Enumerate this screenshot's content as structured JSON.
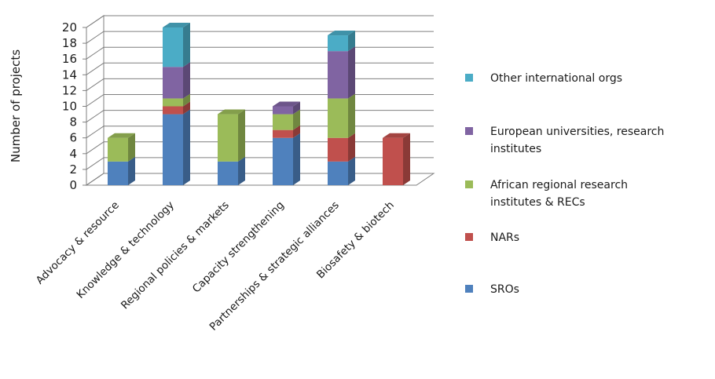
{
  "chart_data": {
    "type": "bar",
    "stacked": true,
    "three_d": true,
    "title": "",
    "xlabel": "",
    "ylabel": "Number of projects",
    "ylim": [
      0,
      20
    ],
    "y_ticks": [
      0,
      2,
      4,
      6,
      8,
      10,
      12,
      14,
      16,
      18,
      20
    ],
    "grid": true,
    "legend_position": "right",
    "categories": [
      "Advocacy & resource",
      "Knowledge & technology",
      "Regional policies & markets",
      "Capacity strengthening",
      "Partnerships & strategic alliances",
      "Biosafety & biotech"
    ],
    "series": [
      {
        "name": "SROs",
        "color": "#4f81bd",
        "values": [
          3,
          9,
          3,
          6,
          3,
          0
        ]
      },
      {
        "name": "NARs",
        "color": "#c0504d",
        "values": [
          0,
          1,
          0,
          1,
          3,
          6
        ]
      },
      {
        "name": "African regional research institutes & RECs",
        "color": "#9bbb59",
        "values": [
          3,
          1,
          6,
          2,
          5,
          0
        ]
      },
      {
        "name": "European universities, research institutes",
        "color": "#8064a2",
        "values": [
          0,
          4,
          0,
          1,
          6,
          0
        ]
      },
      {
        "name": "Other international orgs",
        "color": "#4bacc6",
        "values": [
          0,
          5,
          0,
          0,
          2,
          0
        ]
      }
    ],
    "legend": [
      {
        "lines": [
          "Other international orgs"
        ],
        "color": "#4bacc6"
      },
      {
        "lines": [
          "European universities, research",
          "institutes"
        ],
        "color": "#8064a2"
      },
      {
        "lines": [
          "African regional research",
          "institutes & RECs"
        ],
        "color": "#9bbb59"
      },
      {
        "lines": [
          "NARs"
        ],
        "color": "#c0504d"
      },
      {
        "lines": [
          "SROs"
        ],
        "color": "#4f81bd"
      }
    ]
  }
}
